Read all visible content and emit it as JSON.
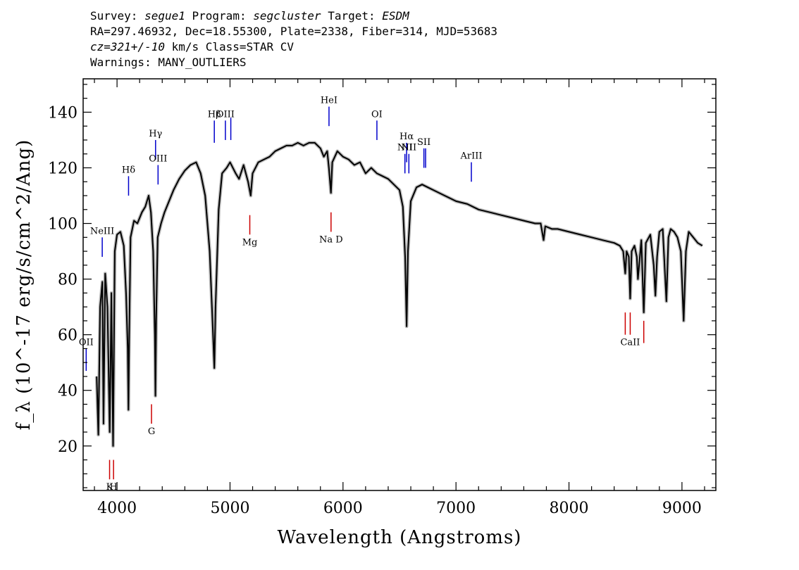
{
  "header": {
    "survey_label": "Survey:",
    "survey": "segue1",
    "program_label": "Program:",
    "program": "segcluster",
    "target_label": "Target:",
    "target": "ESDM",
    "line2": "RA=297.46932, Dec=18.55300, Plate=2338, Fiber=314, MJD=53683",
    "cz": "cz=321+/-10",
    "cz_units": " km/s Class=STAR CV",
    "warnings": "Warnings: MANY_OUTLIERS"
  },
  "chart_data": {
    "type": "line",
    "xlabel": "Wavelength (Angstroms)",
    "ylabel": "f_λ (10^-17 erg/s/cm^2/Ang)",
    "xlim": [
      3700,
      9300
    ],
    "ylim": [
      4,
      152
    ],
    "x_ticks": [
      4000,
      5000,
      6000,
      7000,
      8000,
      9000
    ],
    "y_ticks": [
      20,
      40,
      60,
      80,
      100,
      120,
      140
    ],
    "grid": false,
    "series": [
      {
        "color": "#000000",
        "error_color": "#bbbbbb",
        "points": [
          [
            3820,
            45
          ],
          [
            3835,
            24
          ],
          [
            3850,
            70
          ],
          [
            3870,
            79
          ],
          [
            3880,
            28
          ],
          [
            3895,
            82
          ],
          [
            3915,
            70
          ],
          [
            3935,
            25
          ],
          [
            3950,
            75
          ],
          [
            3965,
            20
          ],
          [
            3980,
            90
          ],
          [
            4000,
            96
          ],
          [
            4030,
            97
          ],
          [
            4060,
            92
          ],
          [
            4080,
            75
          ],
          [
            4095,
            55
          ],
          [
            4101,
            33
          ],
          [
            4108,
            60
          ],
          [
            4120,
            95
          ],
          [
            4150,
            101
          ],
          [
            4180,
            100
          ],
          [
            4220,
            104
          ],
          [
            4250,
            106
          ],
          [
            4280,
            110
          ],
          [
            4300,
            104
          ],
          [
            4320,
            90
          ],
          [
            4335,
            60
          ],
          [
            4340,
            38
          ],
          [
            4346,
            65
          ],
          [
            4360,
            95
          ],
          [
            4390,
            100
          ],
          [
            4420,
            104
          ],
          [
            4450,
            107
          ],
          [
            4500,
            112
          ],
          [
            4550,
            116
          ],
          [
            4600,
            119
          ],
          [
            4650,
            121
          ],
          [
            4700,
            122
          ],
          [
            4740,
            118
          ],
          [
            4780,
            110
          ],
          [
            4820,
            90
          ],
          [
            4845,
            65
          ],
          [
            4861,
            48
          ],
          [
            4872,
            70
          ],
          [
            4900,
            105
          ],
          [
            4930,
            118
          ],
          [
            4970,
            120
          ],
          [
            5000,
            122
          ],
          [
            5050,
            118
          ],
          [
            5080,
            116
          ],
          [
            5120,
            121
          ],
          [
            5160,
            115
          ],
          [
            5183,
            110
          ],
          [
            5200,
            118
          ],
          [
            5250,
            122
          ],
          [
            5300,
            123
          ],
          [
            5350,
            124
          ],
          [
            5400,
            126
          ],
          [
            5450,
            127
          ],
          [
            5500,
            128
          ],
          [
            5550,
            128
          ],
          [
            5600,
            129
          ],
          [
            5650,
            128
          ],
          [
            5700,
            129
          ],
          [
            5750,
            129
          ],
          [
            5800,
            127
          ],
          [
            5830,
            124
          ],
          [
            5860,
            126
          ],
          [
            5875,
            120
          ],
          [
            5893,
            111
          ],
          [
            5905,
            122
          ],
          [
            5950,
            126
          ],
          [
            6000,
            124
          ],
          [
            6050,
            123
          ],
          [
            6100,
            121
          ],
          [
            6150,
            122
          ],
          [
            6200,
            118
          ],
          [
            6250,
            120
          ],
          [
            6300,
            118
          ],
          [
            6350,
            117
          ],
          [
            6400,
            116
          ],
          [
            6450,
            114
          ],
          [
            6500,
            112
          ],
          [
            6530,
            106
          ],
          [
            6550,
            88
          ],
          [
            6563,
            63
          ],
          [
            6575,
            90
          ],
          [
            6600,
            108
          ],
          [
            6650,
            113
          ],
          [
            6700,
            114
          ],
          [
            6750,
            113
          ],
          [
            6800,
            112
          ],
          [
            6900,
            110
          ],
          [
            7000,
            108
          ],
          [
            7100,
            107
          ],
          [
            7200,
            105
          ],
          [
            7300,
            104
          ],
          [
            7400,
            103
          ],
          [
            7500,
            102
          ],
          [
            7600,
            101
          ],
          [
            7700,
            100
          ],
          [
            7750,
            100
          ],
          [
            7775,
            94
          ],
          [
            7790,
            99
          ],
          [
            7850,
            98
          ],
          [
            7900,
            98
          ],
          [
            8000,
            97
          ],
          [
            8100,
            96
          ],
          [
            8200,
            95
          ],
          [
            8300,
            94
          ],
          [
            8400,
            93
          ],
          [
            8450,
            92
          ],
          [
            8480,
            90
          ],
          [
            8498,
            82
          ],
          [
            8510,
            90
          ],
          [
            8530,
            88
          ],
          [
            8542,
            73
          ],
          [
            8555,
            90
          ],
          [
            8580,
            92
          ],
          [
            8600,
            88
          ],
          [
            8610,
            80
          ],
          [
            8640,
            94
          ],
          [
            8662,
            68
          ],
          [
            8680,
            93
          ],
          [
            8720,
            96
          ],
          [
            8750,
            85
          ],
          [
            8765,
            74
          ],
          [
            8780,
            88
          ],
          [
            8800,
            97
          ],
          [
            8830,
            98
          ],
          [
            8862,
            72
          ],
          [
            8880,
            95
          ],
          [
            8900,
            98
          ],
          [
            8930,
            97
          ],
          [
            8960,
            95
          ],
          [
            8990,
            90
          ],
          [
            9015,
            65
          ],
          [
            9035,
            90
          ],
          [
            9060,
            97
          ],
          [
            9100,
            95
          ],
          [
            9140,
            93
          ],
          [
            9180,
            92
          ]
        ]
      }
    ],
    "line_markers": [
      {
        "label": "OII",
        "wavelength": 3727,
        "y0": 47,
        "y1": 55,
        "color": "#0000cc",
        "label_pos": "above"
      },
      {
        "label": "NeIII",
        "wavelength": 3869,
        "y0": 88,
        "y1": 95,
        "color": "#0000cc",
        "label_pos": "above"
      },
      {
        "label": "Hδ",
        "wavelength": 4102,
        "y0": 110,
        "y1": 117,
        "color": "#0000cc",
        "label_pos": "above"
      },
      {
        "label": "Hγ",
        "wavelength": 4341,
        "y0": 123,
        "y1": 130,
        "color": "#0000cc",
        "label_pos": "above"
      },
      {
        "label": "OIII",
        "wavelength": 4363,
        "y0": 114,
        "y1": 121,
        "color": "#0000cc",
        "label_pos": "above"
      },
      {
        "label": "Hβ",
        "wavelength": 4861,
        "y0": 129,
        "y1": 137,
        "color": "#0000cc",
        "label_pos": "above"
      },
      {
        "label": "OIII",
        "wavelength": 4959,
        "y0": 130,
        "y1": 137,
        "color": "#0000cc",
        "label_pos": "above"
      },
      {
        "label": "",
        "wavelength": 5007,
        "y0": 130,
        "y1": 138,
        "color": "#0000cc",
        "label_pos": "above"
      },
      {
        "label": "HeI",
        "wavelength": 5876,
        "y0": 135,
        "y1": 142,
        "color": "#0000cc",
        "label_pos": "above"
      },
      {
        "label": "OI",
        "wavelength": 6300,
        "y0": 130,
        "y1": 137,
        "color": "#0000cc",
        "label_pos": "above"
      },
      {
        "label": "NII",
        "wavelength": 6548,
        "y0": 118,
        "y1": 125,
        "color": "#0000cc",
        "label_pos": "above"
      },
      {
        "label": "Hα",
        "wavelength": 6563,
        "y0": 122,
        "y1": 129,
        "color": "#0000cc",
        "label_pos": "above"
      },
      {
        "label": "NII",
        "wavelength": 6583,
        "y0": 118,
        "y1": 125,
        "color": "#0000cc",
        "label_pos": "above"
      },
      {
        "label": "SII",
        "wavelength": 6716,
        "y0": 120,
        "y1": 127,
        "color": "#0000cc",
        "label_pos": "above"
      },
      {
        "label": "",
        "wavelength": 6731,
        "y0": 120,
        "y1": 127,
        "color": "#0000cc",
        "label_pos": "above"
      },
      {
        "label": "ArIII",
        "wavelength": 7136,
        "y0": 115,
        "y1": 122,
        "color": "#0000cc",
        "label_pos": "above"
      },
      {
        "label": "K",
        "wavelength": 3934,
        "y0": 8,
        "y1": 15,
        "color": "#cc0000",
        "label_pos": "below"
      },
      {
        "label": "H",
        "wavelength": 3969,
        "y0": 8,
        "y1": 15,
        "color": "#cc0000",
        "label_pos": "below"
      },
      {
        "label": "G",
        "wavelength": 4305,
        "y0": 28,
        "y1": 35,
        "color": "#cc0000",
        "label_pos": "below"
      },
      {
        "label": "Mg",
        "wavelength": 5175,
        "y0": 96,
        "y1": 103,
        "color": "#cc0000",
        "label_pos": "below"
      },
      {
        "label": "Na D",
        "wavelength": 5894,
        "y0": 97,
        "y1": 104,
        "color": "#cc0000",
        "label_pos": "below"
      },
      {
        "label": "",
        "wavelength": 8498,
        "y0": 60,
        "y1": 68,
        "color": "#cc0000",
        "label_pos": "below"
      },
      {
        "label": "CaII",
        "wavelength": 8542,
        "y0": 60,
        "y1": 68,
        "color": "#cc0000",
        "label_pos": "below"
      },
      {
        "label": "",
        "wavelength": 8662,
        "y0": 57,
        "y1": 65,
        "color": "#cc0000",
        "label_pos": "below"
      }
    ]
  }
}
